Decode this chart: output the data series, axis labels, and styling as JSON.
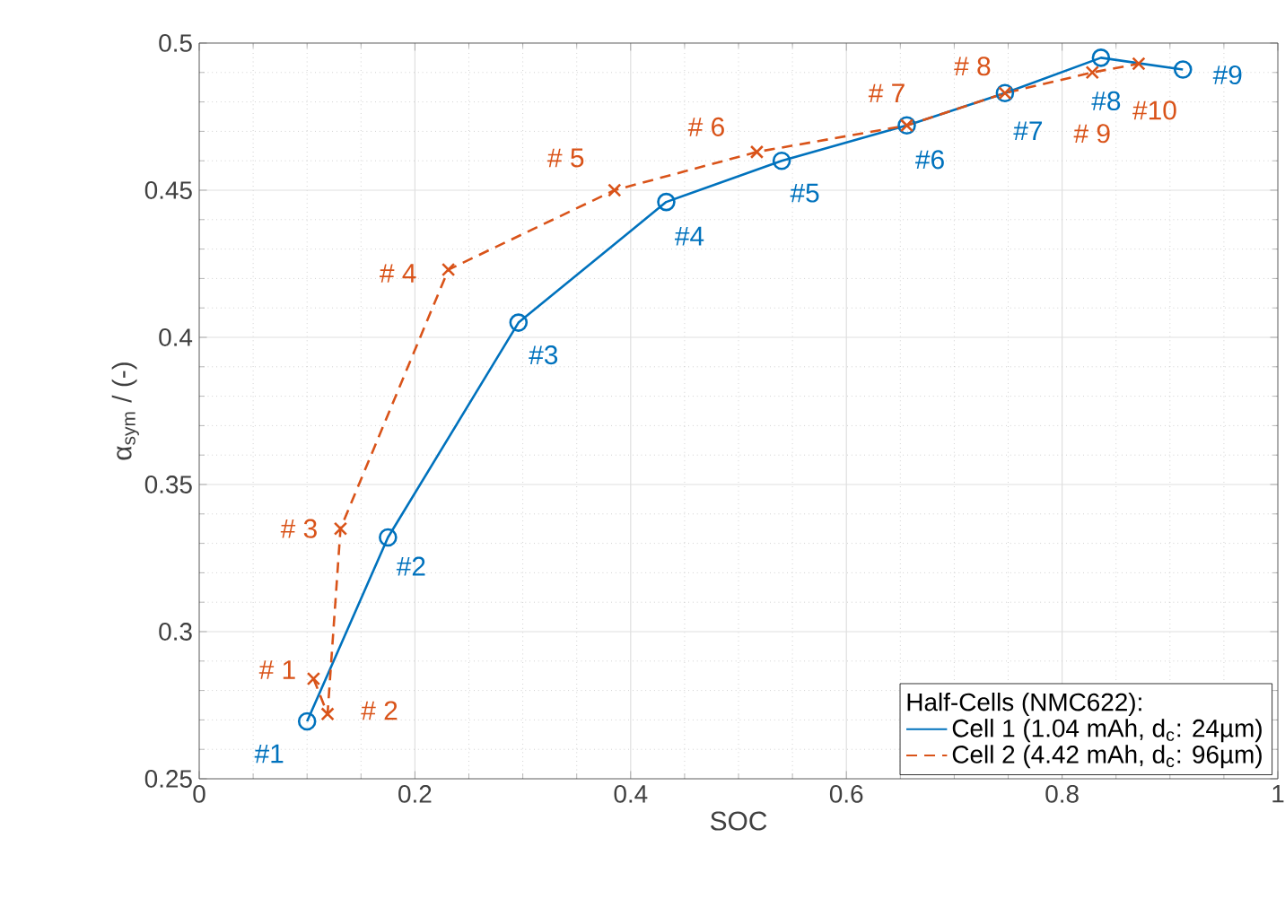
{
  "chart_data": {
    "type": "line",
    "xlabel": "SOC",
    "ylabel": "α$_{sym}$ / (-)",
    "legend_title": "Half-Cells (NMC622):",
    "xlim": [
      0,
      1
    ],
    "ylim": [
      0.25,
      0.5
    ],
    "xticks": [
      0,
      0.2,
      0.4,
      0.6,
      0.8,
      1
    ],
    "yticks": [
      0.25,
      0.3,
      0.35,
      0.4,
      0.45,
      0.5
    ],
    "grid": true,
    "legend": "bottom right",
    "series": [
      {
        "name": "Cell 1 (1.04 mAh, d$_{c}$: 24µm)",
        "color": "#0072bd",
        "marker": "circle",
        "line_style": "solid",
        "x": [
          0.1,
          0.175,
          0.296,
          0.433,
          0.54,
          0.656,
          0.747,
          0.836,
          0.912
        ],
        "values": [
          0.2695,
          0.332,
          0.405,
          0.446,
          0.46,
          0.472,
          0.483,
          0.495,
          0.491
        ]
      },
      {
        "name": "Cell 2  (4.42 mAh, d$_{c}$: 96µm)",
        "color": "#d95319",
        "marker": "cross",
        "line_style": "dashed",
        "x": [
          0.106,
          0.119,
          0.131,
          0.231,
          0.385,
          0.517,
          0.656,
          0.747,
          0.828,
          0.871
        ],
        "values": [
          0.284,
          0.272,
          0.335,
          0.423,
          0.45,
          0.463,
          0.472,
          0.483,
          0.49,
          0.493
        ]
      }
    ],
    "annotations": [
      {
        "text": "#1",
        "x": 0.1,
        "y": 0.2695
      },
      {
        "text": "#2",
        "x": 0.175,
        "y": 0.332
      },
      {
        "text": "#3",
        "x": 0.296,
        "y": 0.405
      },
      {
        "text": "#4",
        "x": 0.433,
        "y": 0.446
      },
      {
        "text": "#5",
        "x": 0.54,
        "y": 0.46
      },
      {
        "text": "#6",
        "x": 0.656,
        "y": 0.472
      },
      {
        "text": "#7",
        "x": 0.747,
        "y": 0.483
      },
      {
        "text": "#8",
        "x": 0.836,
        "y": 0.495
      },
      {
        "text": "#9",
        "x": 0.912,
        "y": 0.491
      },
      {
        "text": "# 1",
        "x": 0.106,
        "y": 0.284
      },
      {
        "text": "# 2",
        "x": 0.119,
        "y": 0.272
      },
      {
        "text": "# 3",
        "x": 0.131,
        "y": 0.335
      },
      {
        "text": "# 4",
        "x": 0.231,
        "y": 0.423
      },
      {
        "text": "# 5",
        "x": 0.385,
        "y": 0.45
      },
      {
        "text": "# 6",
        "x": 0.517,
        "y": 0.463
      },
      {
        "text": "# 7",
        "x": 0.656,
        "y": 0.472
      },
      {
        "text": "# 8",
        "x": 0.747,
        "y": 0.483
      },
      {
        "text": "# 9",
        "x": 0.828,
        "y": 0.49
      },
      {
        "text": "#10",
        "x": 0.871,
        "y": 0.493
      }
    ]
  }
}
